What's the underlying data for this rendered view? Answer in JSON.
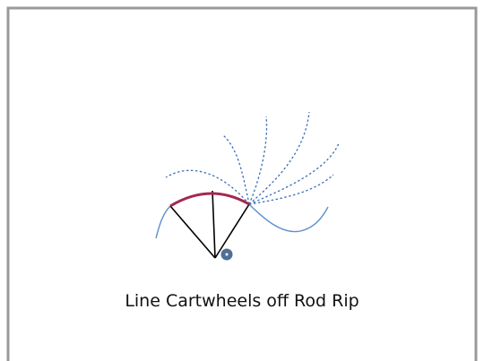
{
  "caption": "Line Cartwheels off Rod Rip"
}
